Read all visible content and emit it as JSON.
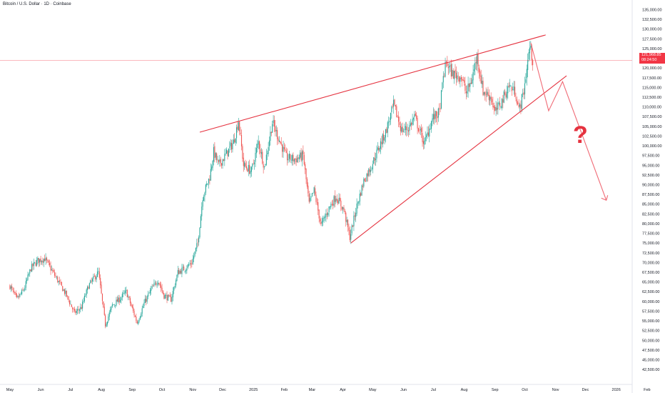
{
  "chart_title": "Bitcoin / U.S. Dollar · 1D · Coinbase",
  "price_label": {
    "value": "121,968.85",
    "countdown": "08:24:50"
  },
  "annotation": "?",
  "colors": {
    "up": "#26a69a",
    "down": "#ef5350",
    "annotation": "#e5323f",
    "price_line": "#f23645"
  },
  "chart_data": {
    "type": "candlestick",
    "title": "Bitcoin / U.S. Dollar · 1D · Coinbase",
    "xlabel": "",
    "ylabel": "",
    "ylim": [
      41500,
      136500
    ],
    "y_ticks": [
      "135,000.00",
      "132,500.00",
      "130,000.00",
      "127,500.00",
      "125,000.00",
      "122,500.00",
      "120,000.00",
      "117,500.00",
      "115,000.00",
      "112,500.00",
      "110,000.00",
      "107,500.00",
      "105,000.00",
      "102,500.00",
      "100,000.00",
      "97,500.00",
      "95,000.00",
      "92,500.00",
      "90,000.00",
      "87,500.00",
      "85,000.00",
      "82,500.00",
      "80,000.00",
      "77,500.00",
      "75,000.00",
      "72,500.00",
      "70,000.00",
      "67,500.00",
      "65,000.00",
      "62,500.00",
      "60,000.00",
      "57,500.00",
      "55,000.00",
      "52,500.00",
      "50,000.00",
      "47,500.00",
      "45,000.00",
      "42,500.00"
    ],
    "x_ticks": [
      "May",
      "Jun",
      "Jul",
      "Aug",
      "Sep",
      "Oct",
      "Nov",
      "Dec",
      "2025",
      "Feb",
      "Mar",
      "Apr",
      "May",
      "Jun",
      "Jul",
      "Aug",
      "Sep",
      "Oct",
      "Nov",
      "Dec",
      "2026",
      "Feb"
    ],
    "price_path": [
      [
        "2024-05-01",
        64000
      ],
      [
        "2024-05-08",
        60500
      ],
      [
        "2024-05-15",
        63000
      ],
      [
        "2024-05-22",
        68500
      ],
      [
        "2024-05-29",
        70500
      ],
      [
        "2024-06-05",
        71000
      ],
      [
        "2024-06-12",
        68000
      ],
      [
        "2024-06-19",
        65000
      ],
      [
        "2024-06-26",
        62000
      ],
      [
        "2024-07-05",
        57000
      ],
      [
        "2024-07-12",
        58500
      ],
      [
        "2024-07-19",
        64000
      ],
      [
        "2024-07-29",
        67500
      ],
      [
        "2024-08-05",
        54000
      ],
      [
        "2024-08-12",
        59000
      ],
      [
        "2024-08-19",
        60500
      ],
      [
        "2024-08-26",
        62500
      ],
      [
        "2024-09-06",
        54500
      ],
      [
        "2024-09-13",
        59500
      ],
      [
        "2024-09-20",
        63000
      ],
      [
        "2024-09-27",
        65500
      ],
      [
        "2024-10-03",
        61500
      ],
      [
        "2024-10-10",
        60500
      ],
      [
        "2024-10-17",
        67500
      ],
      [
        "2024-10-24",
        68500
      ],
      [
        "2024-10-31",
        70000
      ],
      [
        "2024-11-06",
        75000
      ],
      [
        "2024-11-11",
        87000
      ],
      [
        "2024-11-18",
        92000
      ],
      [
        "2024-11-22",
        98500
      ],
      [
        "2024-11-27",
        95000
      ],
      [
        "2024-12-05",
        98000
      ],
      [
        "2024-12-12",
        101000
      ],
      [
        "2024-12-17",
        106500
      ],
      [
        "2024-12-22",
        95000
      ],
      [
        "2024-12-30",
        93500
      ],
      [
        "2025-01-06",
        101000
      ],
      [
        "2025-01-12",
        94500
      ],
      [
        "2025-01-20",
        106000
      ],
      [
        "2025-01-27",
        101500
      ],
      [
        "2025-02-03",
        97000
      ],
      [
        "2025-02-12",
        96500
      ],
      [
        "2025-02-20",
        97500
      ],
      [
        "2025-02-26",
        85000
      ],
      [
        "2025-03-03",
        88500
      ],
      [
        "2025-03-10",
        79500
      ],
      [
        "2025-03-18",
        84000
      ],
      [
        "2025-03-25",
        87000
      ],
      [
        "2025-04-02",
        83500
      ],
      [
        "2025-04-08",
        76500
      ],
      [
        "2025-04-15",
        84500
      ],
      [
        "2025-04-22",
        91000
      ],
      [
        "2025-04-29",
        94500
      ],
      [
        "2025-05-08",
        100000
      ],
      [
        "2025-05-14",
        103500
      ],
      [
        "2025-05-22",
        110500
      ],
      [
        "2025-05-30",
        104000
      ],
      [
        "2025-06-06",
        104500
      ],
      [
        "2025-06-12",
        107500
      ],
      [
        "2025-06-22",
        100500
      ],
      [
        "2025-06-30",
        107000
      ],
      [
        "2025-07-07",
        108500
      ],
      [
        "2025-07-11",
        117500
      ],
      [
        "2025-07-14",
        121500
      ],
      [
        "2025-07-20",
        118500
      ],
      [
        "2025-07-29",
        117800
      ],
      [
        "2025-08-03",
        113500
      ],
      [
        "2025-08-08",
        116500
      ],
      [
        "2025-08-14",
        123000
      ],
      [
        "2025-08-20",
        114000
      ],
      [
        "2025-08-28",
        112500
      ],
      [
        "2025-09-01",
        108500
      ],
      [
        "2025-09-08",
        111500
      ],
      [
        "2025-09-15",
        115500
      ],
      [
        "2025-09-22",
        113500
      ],
      [
        "2025-09-25",
        109000
      ],
      [
        "2025-09-30",
        114000
      ],
      [
        "2025-10-03",
        120000
      ],
      [
        "2025-10-06",
        125500
      ],
      [
        "2025-10-09",
        121968
      ]
    ],
    "trendlines": [
      {
        "from": [
          "2024-11-08",
          103500
        ],
        "to": [
          "2025-10-22",
          128500
        ]
      },
      {
        "from": [
          "2025-04-09",
          75000
        ],
        "to": [
          "2025-11-12",
          118000
        ]
      }
    ],
    "projection": [
      [
        "2025-10-07",
        126500
      ],
      [
        "2025-10-25",
        109000
      ],
      [
        "2025-11-08",
        116500
      ],
      [
        "2025-12-22",
        86000
      ]
    ],
    "current_price": 121968.85
  }
}
